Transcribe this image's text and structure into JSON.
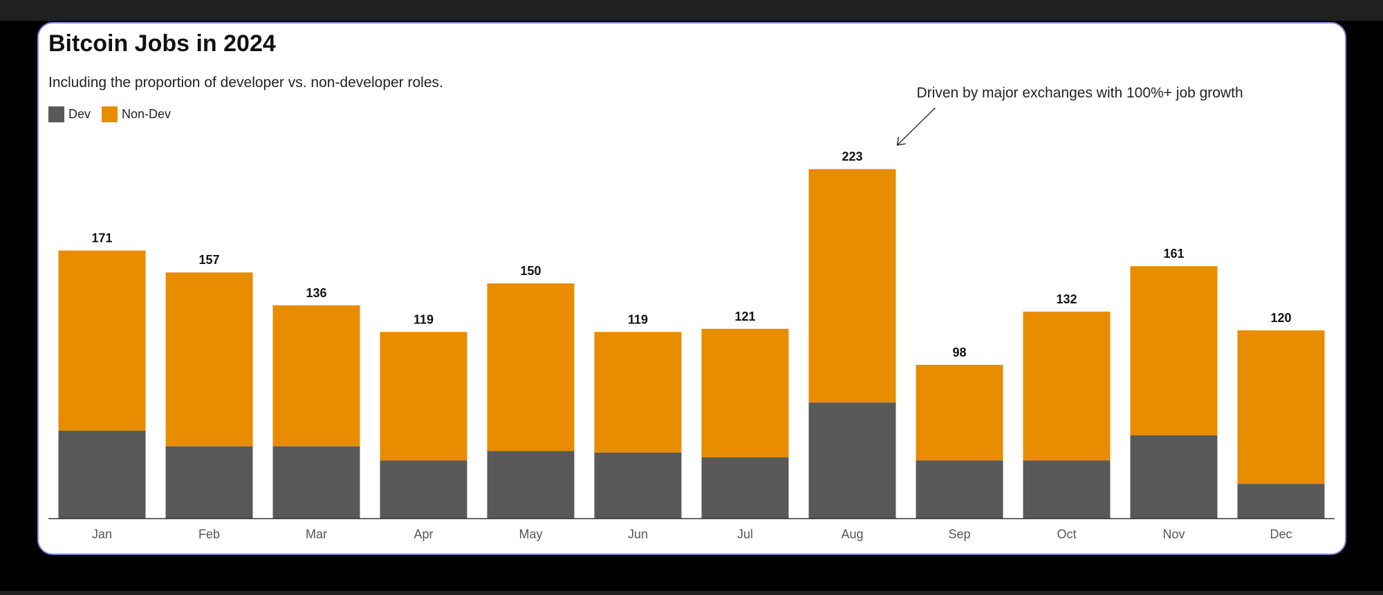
{
  "chart_data": {
    "type": "bar",
    "stacked": true,
    "title": "Bitcoin Jobs in 2024",
    "subtitle": "Including the proportion of developer vs. non-developer roles.",
    "categories": [
      "Jan",
      "Feb",
      "Mar",
      "Apr",
      "May",
      "Jun",
      "Jul",
      "Aug",
      "Sep",
      "Oct",
      "Nov",
      "Dec"
    ],
    "series": [
      {
        "name": "Dev",
        "color": "#595959",
        "values": [
          56,
          46,
          46,
          37,
          43,
          42,
          39,
          74,
          37,
          37,
          53,
          22
        ]
      },
      {
        "name": "Non-Dev",
        "color": "#e88c00",
        "values": [
          115,
          111,
          90,
          82,
          107,
          77,
          82,
          149,
          61,
          95,
          108,
          98
        ]
      }
    ],
    "totals": [
      171,
      157,
      136,
      119,
      150,
      119,
      121,
      223,
      98,
      132,
      161,
      120
    ],
    "ylim": [
      0,
      240
    ],
    "grid": false,
    "legend_position": "top-left",
    "annotation": {
      "text": "Driven by major exchanges with 100%+ job growth",
      "target": "Aug"
    }
  }
}
